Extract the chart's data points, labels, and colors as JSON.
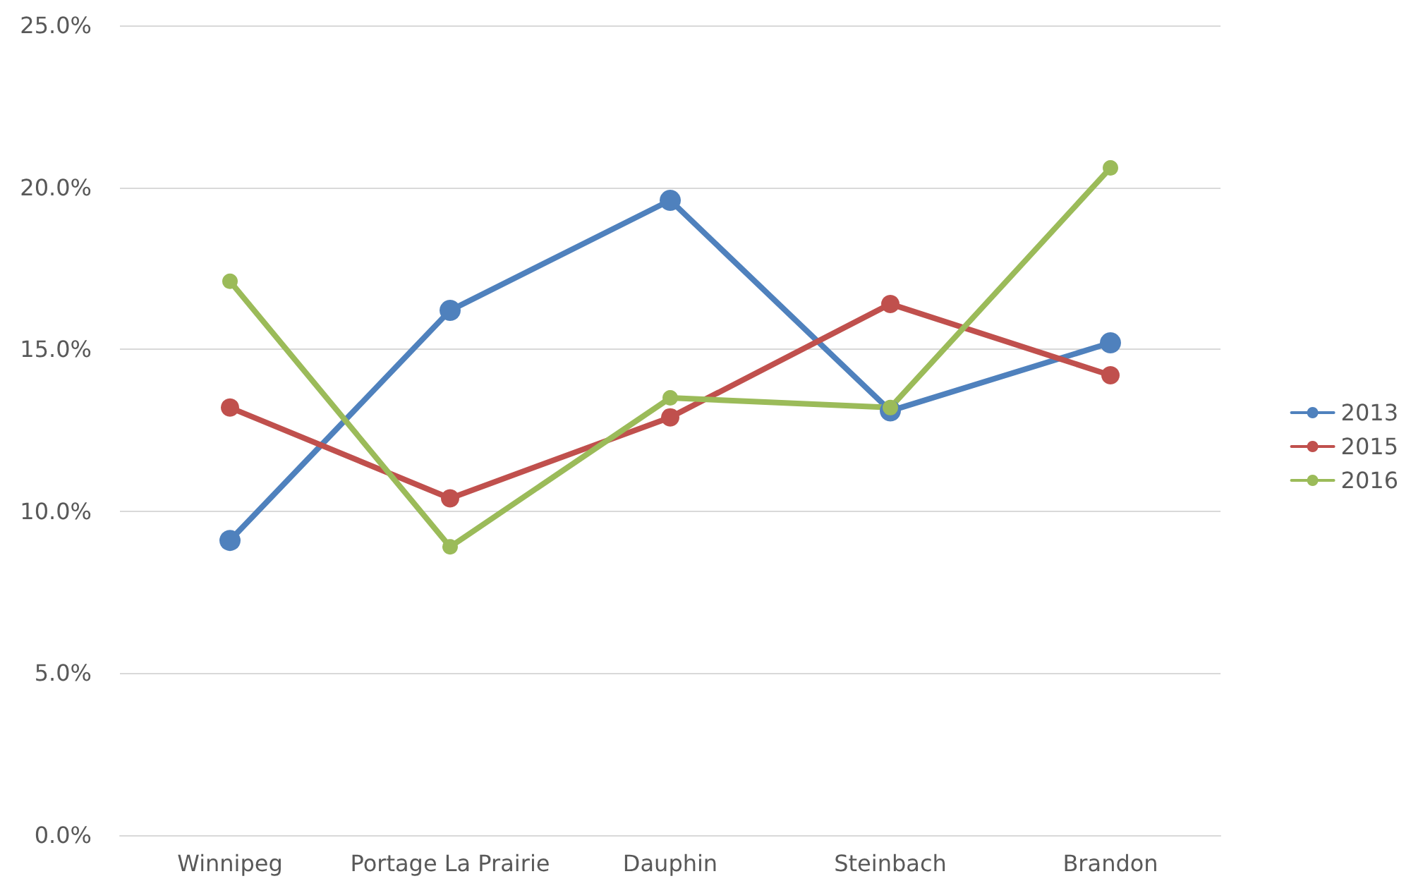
{
  "chart_data": {
    "type": "line",
    "categories": [
      "Winnipeg",
      "Portage La Prairie",
      "Dauphin",
      "Steinbach",
      "Brandon"
    ],
    "series": [
      {
        "name": "2013",
        "color": "#4f81bd",
        "values": [
          9.1,
          16.2,
          19.6,
          13.1,
          15.2
        ]
      },
      {
        "name": "2015",
        "color": "#c0504d",
        "values": [
          13.2,
          10.4,
          12.9,
          16.4,
          14.2
        ]
      },
      {
        "name": "2016",
        "color": "#9bbb59",
        "values": [
          17.1,
          8.9,
          13.5,
          13.2,
          20.6
        ]
      }
    ],
    "ylim": [
      0,
      25
    ],
    "yticks": [
      {
        "value": 0,
        "label": "0.0%"
      },
      {
        "value": 5,
        "label": "5.0%"
      },
      {
        "value": 10,
        "label": "10.0%"
      },
      {
        "value": 15,
        "label": "15.0%"
      },
      {
        "value": 20,
        "label": "20.0%"
      },
      {
        "value": 25,
        "label": "25.0%"
      }
    ],
    "grid": "y",
    "legend": "right",
    "marker": "circle",
    "line_style": "solid"
  }
}
